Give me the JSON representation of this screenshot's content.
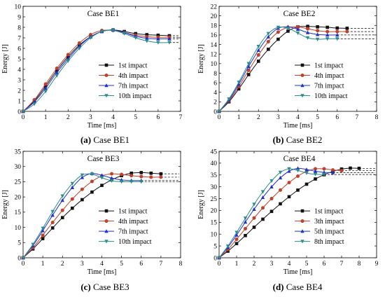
{
  "chart_data": [
    {
      "type": "line",
      "title": "Case BE1",
      "caption_letter": "(a)",
      "caption_text": "Case BE1",
      "xlabel": "Time [ms]",
      "ylabel": "Energy [J]",
      "xlim": [
        0,
        7
      ],
      "ylim": [
        0,
        10
      ],
      "xticks": [
        0,
        1,
        2,
        3,
        4,
        5,
        6,
        7
      ],
      "yticks": [
        0,
        1,
        2,
        3,
        4,
        5,
        6,
        7,
        8,
        9,
        10
      ],
      "legend_position": "center-right",
      "asymptotes": [
        7.2,
        7.05,
        6.9,
        6.55
      ],
      "series": [
        {
          "name": "1st impact",
          "color": "#111111",
          "marker": "square",
          "x": [
            0,
            0.5,
            1,
            1.5,
            2,
            2.5,
            3,
            3.5,
            4,
            4.5,
            5,
            5.5,
            6,
            6.5
          ],
          "y": [
            0,
            1.0,
            2.4,
            3.9,
            5.2,
            6.3,
            7.1,
            7.6,
            7.75,
            7.6,
            7.4,
            7.3,
            7.25,
            7.2
          ]
        },
        {
          "name": "4th impact",
          "color": "#c0402a",
          "marker": "circle",
          "x": [
            0,
            0.5,
            1,
            1.5,
            2,
            2.5,
            3,
            3.5,
            4,
            4.5,
            5,
            5.5,
            6,
            6.5
          ],
          "y": [
            0,
            1.1,
            2.6,
            4.1,
            5.4,
            6.5,
            7.3,
            7.7,
            7.7,
            7.5,
            7.25,
            7.1,
            7.05,
            7.05
          ]
        },
        {
          "name": "7th impact",
          "color": "#1f2fd0",
          "marker": "triangle",
          "x": [
            0,
            0.5,
            1,
            1.5,
            2,
            2.5,
            3,
            3.5,
            4,
            4.5,
            5,
            5.5,
            6,
            6.5
          ],
          "y": [
            0,
            0.9,
            2.2,
            3.7,
            5.0,
            6.2,
            7.1,
            7.6,
            7.75,
            7.5,
            7.15,
            6.95,
            6.9,
            6.9
          ]
        },
        {
          "name": "10th impact",
          "color": "#2a8c8c",
          "marker": "tri-down",
          "x": [
            0,
            0.5,
            1,
            1.5,
            2,
            2.5,
            3,
            3.5,
            4,
            4.5,
            5,
            5.5,
            6,
            6.5
          ],
          "y": [
            0,
            0.7,
            1.9,
            3.4,
            4.8,
            6.0,
            7.0,
            7.6,
            7.7,
            7.4,
            7.0,
            6.7,
            6.55,
            6.55
          ]
        }
      ]
    },
    {
      "type": "line",
      "title": "Case BE2",
      "caption_letter": "(b)",
      "caption_text": "Case BE2",
      "xlabel": "Time [ms]",
      "ylabel": "Energy [J]",
      "xlim": [
        0,
        8
      ],
      "ylim": [
        0,
        22
      ],
      "xticks": [
        0,
        1,
        2,
        3,
        4,
        5,
        6,
        7,
        8
      ],
      "yticks": [
        0,
        2,
        4,
        6,
        8,
        10,
        12,
        14,
        16,
        18,
        20,
        22
      ],
      "legend_position": "center-right",
      "asymptotes": [
        17.4,
        16.7,
        16.0,
        15.2
      ],
      "series": [
        {
          "name": "1st impact",
          "color": "#111111",
          "marker": "square",
          "x": [
            0,
            0.5,
            1,
            1.5,
            2,
            2.5,
            3,
            3.5,
            4,
            4.5,
            5,
            5.5,
            6,
            6.5
          ],
          "y": [
            0,
            2.0,
            4.7,
            7.7,
            10.5,
            13.0,
            15.1,
            16.8,
            17.7,
            17.8,
            17.7,
            17.6,
            17.45,
            17.4
          ]
        },
        {
          "name": "4th impact",
          "color": "#c0402a",
          "marker": "circle",
          "x": [
            0,
            0.5,
            1,
            1.5,
            2,
            2.5,
            3,
            3.5,
            4,
            4.5,
            5,
            5.5,
            6,
            6.5
          ],
          "y": [
            0,
            2.2,
            5.2,
            8.6,
            11.8,
            14.6,
            16.6,
            17.6,
            17.7,
            17.3,
            16.9,
            16.7,
            16.7,
            16.7
          ]
        },
        {
          "name": "7th impact",
          "color": "#1f2fd0",
          "marker": "triangle",
          "x": [
            0,
            0.5,
            1,
            1.5,
            2,
            2.5,
            3,
            3.5,
            4,
            4.5,
            5,
            5.5,
            6
          ],
          "y": [
            0,
            2.4,
            5.7,
            9.4,
            12.8,
            15.6,
            17.4,
            17.7,
            17.2,
            16.5,
            16.1,
            16.0,
            16.0
          ]
        },
        {
          "name": "10th impact",
          "color": "#2a8c8c",
          "marker": "tri-down",
          "x": [
            0,
            0.5,
            1,
            1.5,
            2,
            2.5,
            3,
            3.5,
            4,
            4.5,
            5,
            5.5,
            6
          ],
          "y": [
            0,
            2.6,
            6.1,
            10.0,
            13.6,
            16.3,
            17.6,
            17.4,
            16.4,
            15.4,
            15.1,
            15.2,
            15.2
          ]
        }
      ]
    },
    {
      "type": "line",
      "title": "Case BE3",
      "caption_letter": "(c)",
      "caption_text": "Case BE3",
      "xlabel": "Time [ms]",
      "ylabel": "Energy [J]",
      "xlim": [
        0,
        8
      ],
      "ylim": [
        0,
        35
      ],
      "xticks": [
        0,
        1,
        2,
        3,
        4,
        5,
        6,
        7,
        8
      ],
      "yticks": [
        0,
        5,
        10,
        15,
        20,
        25,
        30,
        35
      ],
      "legend_position": "center-right",
      "asymptotes": [
        27.6,
        26.5,
        25.4,
        25.0
      ],
      "series": [
        {
          "name": "1st impact",
          "color": "#111111",
          "marker": "square",
          "x": [
            0,
            0.5,
            1,
            1.5,
            2,
            2.5,
            3,
            3.5,
            4,
            4.5,
            5,
            5.5,
            6,
            6.5,
            7
          ],
          "y": [
            0,
            2.9,
            6.3,
            9.8,
            13.2,
            16.3,
            19.1,
            21.6,
            23.8,
            25.6,
            27.0,
            27.8,
            28.0,
            27.8,
            27.6
          ]
        },
        {
          "name": "4th impact",
          "color": "#c0402a",
          "marker": "circle",
          "x": [
            0,
            0.5,
            1,
            1.5,
            2,
            2.5,
            3,
            3.5,
            4,
            4.5,
            5,
            5.5,
            6,
            6.5,
            7
          ],
          "y": [
            0,
            3.3,
            7.4,
            11.6,
            15.6,
            19.3,
            22.5,
            25.1,
            26.9,
            27.6,
            27.4,
            27.0,
            26.7,
            26.5,
            26.5
          ]
        },
        {
          "name": "7th impact",
          "color": "#1f2fd0",
          "marker": "triangle",
          "x": [
            0,
            0.5,
            1,
            1.5,
            2,
            2.5,
            3,
            3.5,
            4,
            4.5,
            5,
            5.5,
            6
          ],
          "y": [
            0,
            4.0,
            8.9,
            14.0,
            18.9,
            23.1,
            26.4,
            27.7,
            27.1,
            26.2,
            25.6,
            25.4,
            25.4
          ]
        },
        {
          "name": "10th impact",
          "color": "#2a8c8c",
          "marker": "tri-down",
          "x": [
            0,
            0.5,
            1,
            1.5,
            2,
            2.5,
            3,
            3.5,
            4,
            4.5,
            5,
            5.5,
            6
          ],
          "y": [
            0,
            4.4,
            9.7,
            15.2,
            20.3,
            24.4,
            27.2,
            27.5,
            26.3,
            25.3,
            25.0,
            25.0,
            25.0
          ]
        }
      ]
    },
    {
      "type": "line",
      "title": "Case BE4",
      "caption_letter": "(d)",
      "caption_text": "Case BE4",
      "xlabel": "Time [ms]",
      "ylabel": "Energy [J]",
      "xlim": [
        0,
        9
      ],
      "ylim": [
        0,
        45
      ],
      "xticks": [
        0,
        1,
        2,
        3,
        4,
        5,
        6,
        7,
        8,
        9
      ],
      "yticks": [
        0,
        5,
        10,
        15,
        20,
        25,
        30,
        35,
        40,
        45
      ],
      "legend_position": "center-right",
      "asymptotes": [
        37.8,
        36.8,
        36.0,
        35.2
      ],
      "series": [
        {
          "name": "1st impact",
          "color": "#111111",
          "marker": "square",
          "x": [
            0,
            0.5,
            1,
            1.5,
            2,
            2.5,
            3,
            3.5,
            4,
            4.5,
            5,
            5.5,
            6,
            6.5,
            7,
            7.5,
            8
          ],
          "y": [
            0,
            2.8,
            6.0,
            9.4,
            12.9,
            16.3,
            19.6,
            22.8,
            25.8,
            28.6,
            31.1,
            33.3,
            35.1,
            36.5,
            37.5,
            37.9,
            37.8
          ]
        },
        {
          "name": "3th impact",
          "color": "#c0402a",
          "marker": "circle",
          "x": [
            0,
            0.5,
            1,
            1.5,
            2,
            2.5,
            3,
            3.5,
            4,
            4.5,
            5,
            5.5,
            6,
            6.5,
            7
          ],
          "y": [
            0,
            3.5,
            7.8,
            12.3,
            16.8,
            21.1,
            25.0,
            28.6,
            31.8,
            34.5,
            36.5,
            37.6,
            37.6,
            37.1,
            36.8
          ]
        },
        {
          "name": "5th impact",
          "color": "#1f2fd0",
          "marker": "triangle",
          "x": [
            0,
            0.5,
            1,
            1.5,
            2,
            2.5,
            3,
            3.5,
            4,
            4.5,
            5,
            5.5,
            6,
            6.5
          ],
          "y": [
            0,
            4.4,
            9.6,
            15.1,
            20.5,
            25.5,
            30.0,
            33.8,
            36.6,
            37.8,
            37.3,
            36.6,
            36.1,
            36.0
          ]
        },
        {
          "name": "8th impact",
          "color": "#2a8c8c",
          "marker": "tri-down",
          "x": [
            0,
            0.5,
            1,
            1.5,
            2,
            2.5,
            3,
            3.5,
            4,
            4.5,
            5,
            5.5,
            6
          ],
          "y": [
            0,
            4.9,
            10.7,
            16.7,
            22.6,
            27.9,
            32.5,
            36.1,
            37.6,
            36.9,
            35.8,
            35.3,
            35.2
          ]
        }
      ]
    }
  ]
}
